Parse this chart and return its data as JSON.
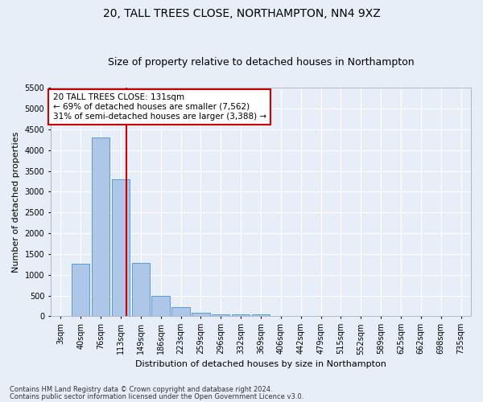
{
  "title": "20, TALL TREES CLOSE, NORTHAMPTON, NN4 9XZ",
  "subtitle": "Size of property relative to detached houses in Northampton",
  "xlabel": "Distribution of detached houses by size in Northampton",
  "ylabel": "Number of detached properties",
  "footnote1": "Contains HM Land Registry data © Crown copyright and database right 2024.",
  "footnote2": "Contains public sector information licensed under the Open Government Licence v3.0.",
  "bar_labels": [
    "3sqm",
    "40sqm",
    "76sqm",
    "113sqm",
    "149sqm",
    "186sqm",
    "223sqm",
    "259sqm",
    "296sqm",
    "332sqm",
    "369sqm",
    "406sqm",
    "442sqm",
    "479sqm",
    "515sqm",
    "552sqm",
    "589sqm",
    "625sqm",
    "662sqm",
    "698sqm",
    "735sqm"
  ],
  "bar_values": [
    0,
    1270,
    4300,
    3300,
    1280,
    490,
    215,
    90,
    55,
    55,
    50,
    0,
    0,
    0,
    0,
    0,
    0,
    0,
    0,
    0,
    0
  ],
  "bar_color": "#aec6e8",
  "bar_edgecolor": "#5b9bd5",
  "vline_x_index": 3.3,
  "vline_color": "#cc0000",
  "annotation_text": "20 TALL TREES CLOSE: 131sqm\n← 69% of detached houses are smaller (7,562)\n31% of semi-detached houses are larger (3,388) →",
  "annotation_box_color": "#ffffff",
  "annotation_box_edgecolor": "#cc0000",
  "ylim": [
    0,
    5500
  ],
  "yticks": [
    0,
    500,
    1000,
    1500,
    2000,
    2500,
    3000,
    3500,
    4000,
    4500,
    5000,
    5500
  ],
  "background_color": "#e8eef8",
  "plot_background": "#e8eef8",
  "grid_color": "#ffffff",
  "title_fontsize": 10,
  "subtitle_fontsize": 9,
  "axis_fontsize": 8,
  "tick_fontsize": 7,
  "footnote_fontsize": 6
}
